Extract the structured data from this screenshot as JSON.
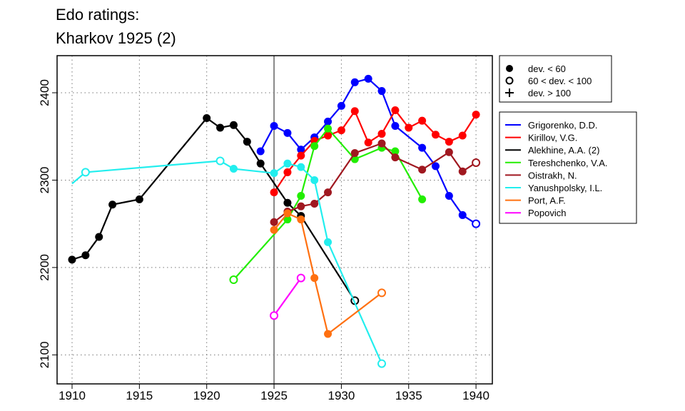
{
  "chart_data": {
    "type": "line",
    "title": [
      "Edo ratings:",
      "Kharkov 1925 (2)"
    ],
    "xlim": [
      1909,
      1941.5
    ],
    "ylim": [
      2080,
      2440
    ],
    "xticks": [
      1910,
      1915,
      1920,
      1925,
      1930,
      1935,
      1940
    ],
    "yticks": [
      2100,
      2200,
      2300,
      2400
    ],
    "grid": true,
    "grid_style": "dotted",
    "reference_year": 1925,
    "marker_legend": [
      {
        "symbol": "filled",
        "label": "dev. < 60"
      },
      {
        "symbol": "open",
        "label": "60 < dev. < 100"
      },
      {
        "symbol": "plus",
        "label": "dev. > 100"
      }
    ],
    "legend_placement": "right",
    "series": [
      {
        "name": "Grigorenko, D.D.",
        "color": "#0000ff",
        "points": [
          [
            1924,
            2333,
            "f"
          ],
          [
            1925,
            2362,
            "f"
          ],
          [
            1926,
            2354,
            "f"
          ],
          [
            1927,
            2335,
            "f"
          ],
          [
            1928,
            2349,
            "f"
          ],
          [
            1929,
            2367,
            "f"
          ],
          [
            1930,
            2385,
            "f"
          ],
          [
            1931,
            2412,
            "f"
          ],
          [
            1932,
            2416,
            "f"
          ],
          [
            1933,
            2402,
            "f"
          ],
          [
            1934,
            2362,
            "f"
          ],
          [
            1936,
            2337,
            "f"
          ],
          [
            1937,
            2316,
            "f"
          ],
          [
            1938,
            2282,
            "f"
          ],
          [
            1939,
            2260,
            "f"
          ],
          [
            1940,
            2250,
            "o"
          ]
        ]
      },
      {
        "name": "Kirillov, V.G.",
        "color": "#ff0000",
        "points": [
          [
            1925,
            2286,
            "f"
          ],
          [
            1926,
            2309,
            "f"
          ],
          [
            1927,
            2328,
            "f"
          ],
          [
            1928,
            2345,
            "f"
          ],
          [
            1929,
            2351,
            "f"
          ],
          [
            1930,
            2357,
            "f"
          ],
          [
            1931,
            2379,
            "f"
          ],
          [
            1932,
            2343,
            "f"
          ],
          [
            1933,
            2353,
            "f"
          ],
          [
            1934,
            2380,
            "f"
          ],
          [
            1935,
            2360,
            "f"
          ],
          [
            1936,
            2368,
            "f"
          ],
          [
            1937,
            2352,
            "f"
          ],
          [
            1938,
            2344,
            "f"
          ],
          [
            1939,
            2351,
            "f"
          ],
          [
            1940,
            2375,
            "f"
          ]
        ]
      },
      {
        "name": "Alekhine, A.A. (2)",
        "color": "#000000",
        "points": [
          [
            1910,
            2209,
            "f"
          ],
          [
            1911,
            2214,
            "f"
          ],
          [
            1912,
            2235,
            "f"
          ],
          [
            1913,
            2272,
            "f"
          ],
          [
            1915,
            2278,
            "f"
          ],
          [
            1920,
            2371,
            "f"
          ],
          [
            1921,
            2360,
            "f"
          ],
          [
            1922,
            2363,
            "f"
          ],
          [
            1923,
            2344,
            "f"
          ],
          [
            1924,
            2319,
            "f"
          ],
          [
            1926,
            2274,
            "f"
          ],
          [
            1927,
            2259,
            "f"
          ],
          [
            1931,
            2162,
            "o"
          ]
        ]
      },
      {
        "name": "Tereshchenko, V.A.",
        "color": "#22ee00",
        "points": [
          [
            1922,
            2186,
            "o"
          ],
          [
            1926,
            2255,
            "f"
          ],
          [
            1927,
            2282,
            "f"
          ],
          [
            1928,
            2339,
            "f"
          ],
          [
            1929,
            2359,
            "f"
          ],
          [
            1931,
            2324,
            "f"
          ],
          [
            1933,
            2337,
            "f"
          ],
          [
            1934,
            2333,
            "f"
          ],
          [
            1936,
            2278,
            "f"
          ]
        ]
      },
      {
        "name": "Oistrakh, N.",
        "color": "#a01820",
        "points": [
          [
            1925,
            2252,
            "f"
          ],
          [
            1926,
            2264,
            "f"
          ],
          [
            1927,
            2270,
            "f"
          ],
          [
            1928,
            2273,
            "f"
          ],
          [
            1929,
            2286,
            "f"
          ],
          [
            1931,
            2331,
            "f"
          ],
          [
            1933,
            2342,
            "f"
          ],
          [
            1934,
            2326,
            "f"
          ],
          [
            1936,
            2312,
            "f"
          ],
          [
            1938,
            2332,
            "f"
          ],
          [
            1939,
            2310,
            "f"
          ],
          [
            1940,
            2320,
            "o"
          ]
        ]
      },
      {
        "name": "Yanushpolsky, I.L.",
        "color": "#22eeee",
        "points": [
          [
            1910,
            2296,
            "n"
          ],
          [
            1911,
            2309,
            "o"
          ],
          [
            1921,
            2322,
            "o"
          ],
          [
            1922,
            2313,
            "f"
          ],
          [
            1925,
            2308,
            "f"
          ],
          [
            1926,
            2319,
            "f"
          ],
          [
            1927,
            2315,
            "f"
          ],
          [
            1928,
            2300,
            "f"
          ],
          [
            1929,
            2229,
            "f"
          ],
          [
            1933,
            2090,
            "o"
          ]
        ]
      },
      {
        "name": "Port, A.F.",
        "color": "#ff7010",
        "points": [
          [
            1925,
            2243,
            "f"
          ],
          [
            1926,
            2262,
            "f"
          ],
          [
            1927,
            2255,
            "f"
          ],
          [
            1928,
            2188,
            "f"
          ],
          [
            1929,
            2124,
            "f"
          ],
          [
            1933,
            2171,
            "o"
          ]
        ]
      },
      {
        "name": "Popovich",
        "color": "#ff00ff",
        "points": [
          [
            1925,
            2145,
            "o"
          ],
          [
            1927,
            2188,
            "o"
          ]
        ]
      }
    ]
  }
}
